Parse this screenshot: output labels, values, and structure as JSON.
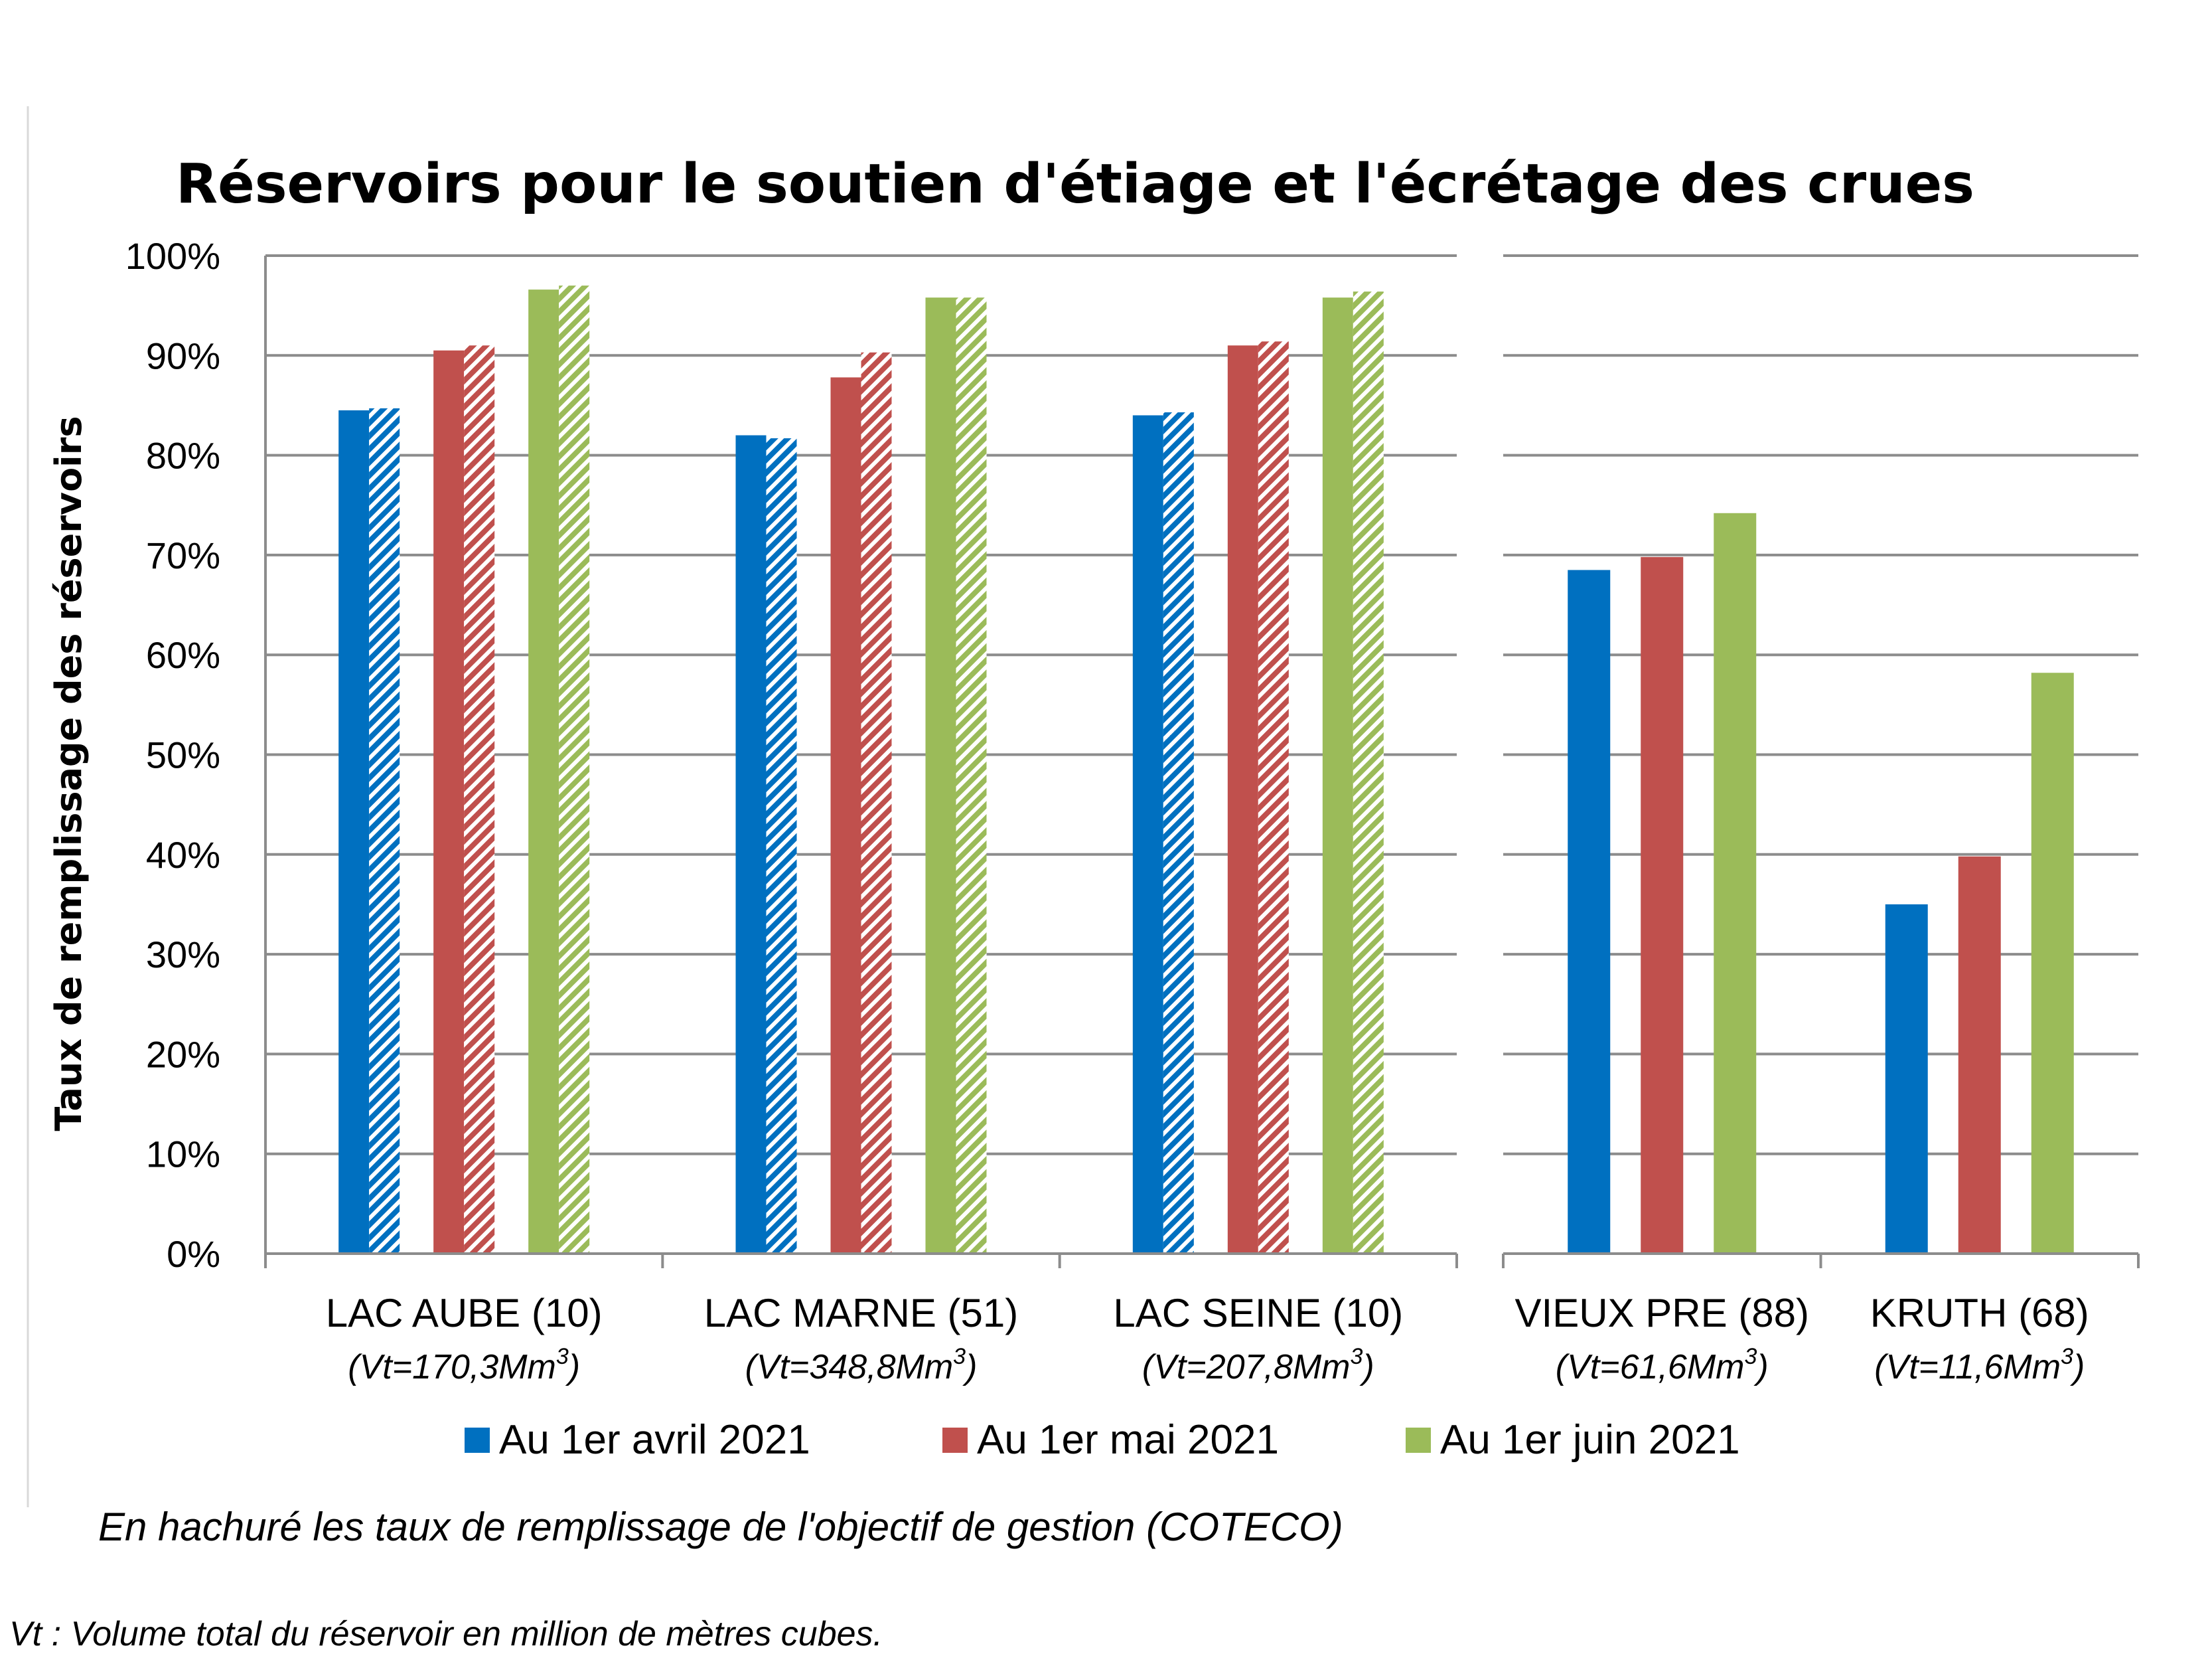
{
  "chart_data": {
    "type": "bar",
    "title": "Réservoirs pour le soutien d'étiage et l'écrétage des crues",
    "ylabel": "Taux de remplissage des réservoirs",
    "xlabel": "",
    "ylim": [
      0,
      100
    ],
    "y_ticks": [
      "0%",
      "10%",
      "20%",
      "30%",
      "40%",
      "50%",
      "60%",
      "70%",
      "80%",
      "90%",
      "100%"
    ],
    "grid": true,
    "legend_position": "bottom",
    "categories": [
      {
        "name": "LAC AUBE (10)",
        "vt_prefix": "(Vt=170,3Mm",
        "vt_sup": "3",
        "vt_suffix": ")"
      },
      {
        "name": "LAC MARNE (51)",
        "vt_prefix": "(Vt=348,8Mm",
        "vt_sup": "3",
        "vt_suffix": ")"
      },
      {
        "name": "LAC SEINE (10)",
        "vt_prefix": "(Vt=207,8Mm",
        "vt_sup": "3",
        "vt_suffix": ")"
      },
      {
        "name": "VIEUX PRE (88)",
        "vt_prefix": "(Vt=61,6Mm",
        "vt_sup": "3",
        "vt_suffix": ")"
      },
      {
        "name": "KRUTH (68)",
        "vt_prefix": "(Vt=11,6Mm",
        "vt_sup": "3",
        "vt_suffix": ")"
      }
    ],
    "series": [
      {
        "name": "Au 1er avril 2021",
        "color": "#0070C0",
        "values": [
          84.5,
          82.0,
          84.0,
          68.5,
          35.0
        ],
        "objective": [
          84.7,
          81.7,
          84.3,
          null,
          null
        ]
      },
      {
        "name": "Au 1er mai 2021",
        "color": "#C0504D",
        "values": [
          90.5,
          87.8,
          91.0,
          69.8,
          39.8
        ],
        "objective": [
          91.0,
          90.3,
          91.4,
          null,
          null
        ]
      },
      {
        "name": "Au 1er juin 2021",
        "color": "#9BBB59",
        "values": [
          96.6,
          95.8,
          95.8,
          74.2,
          58.2
        ],
        "objective": [
          97.0,
          95.8,
          96.4,
          null,
          null
        ]
      }
    ],
    "hatch_note": "En hachuré les taux de remplissage de l'objectif de gestion (COTECO)"
  },
  "footnote": "Vt : Volume total du réservoir en million de mètres cubes."
}
